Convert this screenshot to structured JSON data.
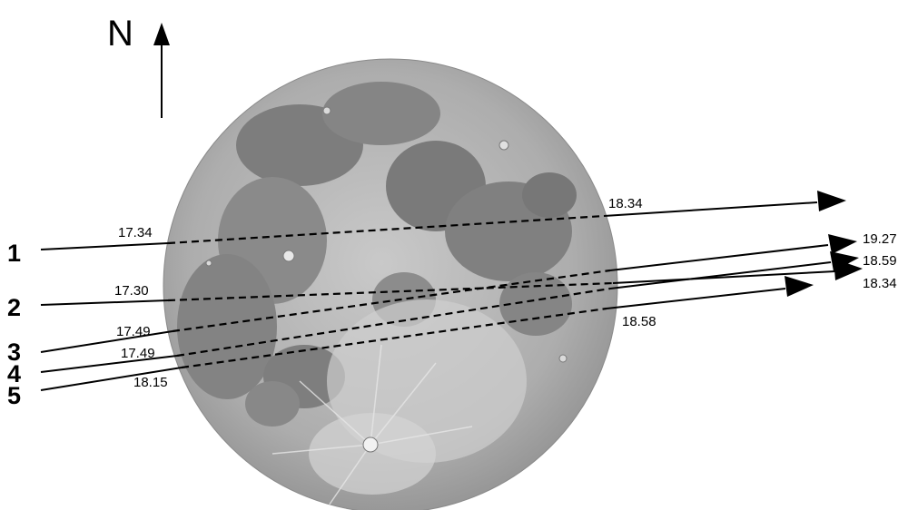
{
  "north_label": "N",
  "tracks": [
    {
      "number": "1",
      "start_time": "17.34",
      "end_time": "18.34"
    },
    {
      "number": "2",
      "start_time": "17.30",
      "end_time": "18.34"
    },
    {
      "number": "3",
      "start_time": "17.49",
      "end_time": "19.27"
    },
    {
      "number": "4",
      "start_time": "17.49",
      "end_time": "18.59"
    },
    {
      "number": "5",
      "start_time": "18.15",
      "end_time": "18.58"
    }
  ]
}
